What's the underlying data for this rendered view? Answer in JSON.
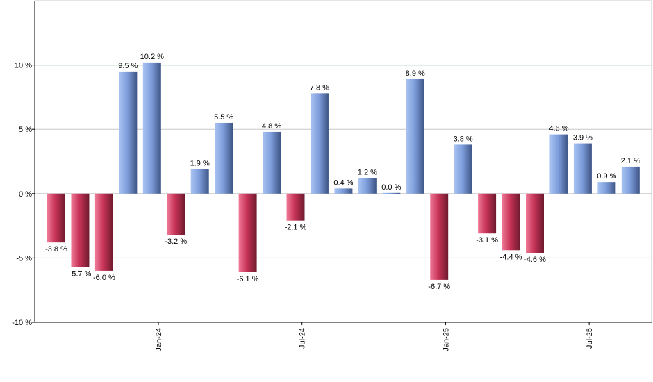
{
  "chart_data": {
    "type": "bar",
    "title": "",
    "xlabel": "",
    "ylabel": "",
    "ylim": [
      -10,
      15
    ],
    "grid": true,
    "legend": "none",
    "y_ticks": [
      -10,
      -5,
      0,
      5,
      10
    ],
    "y_tick_labels": [
      "-10 %",
      "-5 %",
      "0 %",
      "5 %",
      "10 %"
    ],
    "x_tick_labels": [
      {
        "label": "Jan-24",
        "after_index": 4
      },
      {
        "label": "Jul-24",
        "after_index": 10
      },
      {
        "label": "Jan-25",
        "after_index": 16
      },
      {
        "label": "Jul-25",
        "after_index": 22
      }
    ],
    "reference_line": {
      "value": 10,
      "color": "#2e7d32"
    },
    "colors": {
      "positive": "#7f9fdc",
      "negative": "#c73357",
      "grid": "#c8c8c8",
      "axis": "#000000"
    },
    "values": [
      -3.8,
      -5.7,
      -6.0,
      9.5,
      10.2,
      -3.2,
      1.9,
      5.5,
      -6.1,
      4.8,
      -2.1,
      7.8,
      0.4,
      1.2,
      0.0,
      8.9,
      -6.7,
      3.8,
      -3.1,
      -4.4,
      -4.6,
      4.6,
      3.9,
      0.9,
      2.1
    ],
    "data_labels": [
      "-3.8 %",
      "-5.7 %",
      "-6.0 %",
      "9.5 %",
      "10.2 %",
      "-3.2 %",
      "1.9 %",
      "5.5 %",
      "-6.1 %",
      "4.8 %",
      "-2.1 %",
      "7.8 %",
      "0.4 %",
      "1.2 %",
      "0.0 %",
      "8.9 %",
      "-6.7 %",
      "3.8 %",
      "-3.1 %",
      "-4.4 %",
      "-4.6 %",
      "4.6 %",
      "3.9 %",
      "0.9 %",
      "2.1 %"
    ]
  }
}
